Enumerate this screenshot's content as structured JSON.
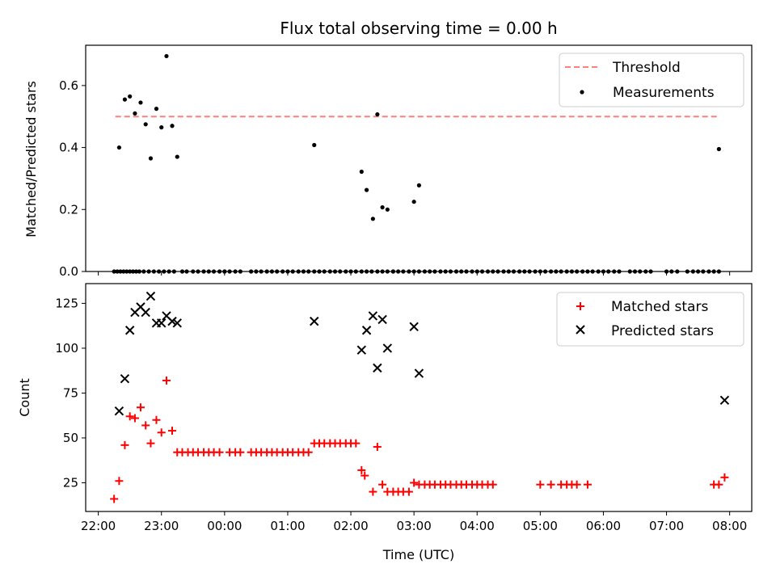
{
  "figure_title": "Flux total observing time = 0.00 h",
  "chart_data": [
    {
      "type": "scatter",
      "title": "Flux total observing time = 0.00 h",
      "xlabel": "",
      "ylabel": "Matched/Predicted stars",
      "x_unit": "hours after 22:00 UTC",
      "xlim": [
        -0.2,
        10.35
      ],
      "ylim": [
        0,
        0.73
      ],
      "yticks": [
        0.0,
        0.2,
        0.4,
        0.6
      ],
      "ytick_labels": [
        "0.0",
        "0.2",
        "0.4",
        "0.6"
      ],
      "legend_position": "upper right",
      "threshold": {
        "name": "Threshold",
        "value": 0.5,
        "x_range": [
          0.27,
          9.83
        ],
        "color": "#ff7f7f"
      },
      "series": [
        {
          "name": "Measurements",
          "color": "#000000",
          "x": [
            0.25,
            0.33,
            0.42,
            0.5,
            0.58,
            0.67,
            0.75,
            0.83,
            0.92,
            1.0,
            1.08,
            1.17,
            1.25,
            0.3,
            0.35,
            0.4,
            0.45,
            0.5,
            0.55,
            0.6,
            0.65,
            0.72,
            0.8,
            0.88,
            0.96,
            1.04,
            1.12,
            1.2,
            1.33,
            1.4,
            1.5,
            1.58,
            1.67,
            1.75,
            1.83,
            1.92,
            2.0,
            2.08,
            2.17,
            2.25,
            2.42,
            2.5,
            2.58,
            2.67,
            2.75,
            2.83,
            2.92,
            3.0,
            3.08,
            3.17,
            3.25,
            3.33,
            3.42,
            3.5,
            3.58,
            3.67,
            3.75,
            3.83,
            3.92,
            4.0,
            4.08,
            4.17,
            4.25,
            4.33,
            4.42,
            4.5,
            4.58,
            4.67,
            4.75,
            4.83,
            4.92,
            5.0,
            5.08,
            2.0,
            5.17,
            5.25,
            5.33,
            5.42,
            5.5,
            5.58,
            5.67,
            5.75,
            5.83,
            5.92,
            6.0,
            6.08,
            6.17,
            6.25,
            6.33,
            6.42,
            6.5,
            6.58,
            6.67,
            6.75,
            6.83,
            6.92,
            7.0,
            7.08,
            7.17,
            7.25,
            7.33,
            7.42,
            7.5,
            7.58,
            7.67,
            7.75,
            7.83,
            7.92,
            8.0,
            8.08,
            8.17,
            8.25,
            8.42,
            8.5,
            8.58,
            8.67,
            8.75,
            9.0,
            9.08,
            9.17,
            9.33,
            9.42,
            9.5,
            9.58,
            9.67,
            9.75,
            9.83
          ],
          "y": [
            0.0,
            0.4,
            0.555,
            0.565,
            0.51,
            0.545,
            0.475,
            0.365,
            0.525,
            0.465,
            0.695,
            0.47,
            0.37,
            0.0,
            0.0,
            0.0,
            0.0,
            0.0,
            0.0,
            0.0,
            0.0,
            0.0,
            0.0,
            0.0,
            0.0,
            0.0,
            0.0,
            0.0,
            0.0,
            0.0,
            0.0,
            0.0,
            0.0,
            0.0,
            0.0,
            0.0,
            0.0,
            0.0,
            0.0,
            0.0,
            0.0,
            0.0,
            0.0,
            0.0,
            0.0,
            0.0,
            0.0,
            0.0,
            0.0,
            0.0,
            0.0,
            0.0,
            0.0,
            0.0,
            0.0,
            0.0,
            0.0,
            0.0,
            0.0,
            0.0,
            0.0,
            0.0,
            0.0,
            0.0,
            0.0,
            0.0,
            0.0,
            0.0,
            0.0,
            0.0,
            0.0,
            0.0,
            0.0,
            0.0,
            0.0,
            0.0,
            0.0,
            0.0,
            0.0,
            0.0,
            0.0,
            0.0,
            0.0,
            0.0,
            0.0,
            0.0,
            0.0,
            0.0,
            0.0,
            0.0,
            0.0,
            0.0,
            0.0,
            0.0,
            0.0,
            0.0,
            0.0,
            0.0,
            0.0,
            0.0,
            0.0,
            0.0,
            0.0,
            0.0,
            0.0,
            0.0,
            0.0,
            0.0,
            0.0,
            0.0,
            0.0,
            0.0,
            0.0,
            0.0,
            0.0,
            0.0,
            0.0,
            0.0,
            0.0,
            0.0,
            0.0,
            0.0,
            0.0,
            0.0,
            0.0,
            0.0,
            0.0
          ]
        },
        {
          "name": "",
          "color": "#000000",
          "x": [
            3.42,
            4.17,
            4.25,
            4.35,
            4.5,
            4.58,
            4.67,
            5.0,
            5.08
          ],
          "y": [
            0.408,
            0.322,
            0.263,
            0.17,
            0.207,
            0.2,
            0.0,
            0.225,
            0.278
          ]
        },
        {
          "name": "",
          "color": "#000000",
          "x": [
            4.42,
            9.83
          ],
          "y": [
            0.507,
            0.395
          ]
        }
      ]
    },
    {
      "type": "scatter",
      "title": "",
      "xlabel": "Time (UTC)",
      "ylabel": "Count",
      "x_unit": "hours after 22:00 UTC",
      "xlim": [
        -0.2,
        10.35
      ],
      "ylim": [
        9,
        136
      ],
      "yticks": [
        25,
        50,
        75,
        100,
        125
      ],
      "ytick_labels": [
        "25",
        "50",
        "75",
        "100",
        "125"
      ],
      "xticks": [
        0,
        1,
        2,
        3,
        4,
        5,
        6,
        7,
        8,
        9,
        10
      ],
      "xtick_labels": [
        "22:00",
        "23:00",
        "00:00",
        "01:00",
        "02:00",
        "03:00",
        "04:00",
        "05:00",
        "06:00",
        "07:00",
        "08:00"
      ],
      "legend_position": "upper right",
      "series": [
        {
          "name": "Matched stars",
          "marker": "+",
          "color": "#ff0000",
          "x": [
            0.25,
            0.33,
            0.42,
            0.5,
            0.58,
            0.67,
            0.75,
            0.83,
            0.92,
            1.0,
            1.08,
            1.17,
            1.25,
            1.33,
            1.42,
            1.5,
            1.58,
            1.67,
            1.75,
            1.83,
            1.92,
            2.08,
            2.17,
            2.25,
            2.42,
            2.5,
            2.58,
            2.67,
            2.75,
            2.83,
            2.92,
            3.0,
            3.08,
            3.17,
            3.25,
            3.33,
            3.42,
            3.5,
            3.58,
            3.67,
            3.75,
            3.83,
            3.92,
            4.0,
            4.08,
            4.17,
            4.22,
            4.35,
            4.42,
            4.5,
            4.58,
            4.67,
            4.75,
            4.83,
            4.92,
            5.0,
            5.08,
            5.17,
            5.25,
            5.33,
            5.42,
            5.5,
            5.58,
            5.67,
            5.75,
            5.83,
            5.92,
            6.0,
            6.08,
            6.17,
            6.25,
            7.0,
            7.17,
            7.33,
            7.42,
            7.5,
            7.58,
            7.75,
            9.75,
            9.83,
            9.92
          ],
          "y": [
            16,
            26,
            46,
            62,
            61,
            67,
            57,
            47,
            60,
            53,
            82,
            54,
            42,
            42,
            42,
            42,
            42,
            42,
            42,
            42,
            42,
            42,
            42,
            42,
            42,
            42,
            42,
            42,
            42,
            42,
            42,
            42,
            42,
            42,
            42,
            42,
            47,
            47,
            47,
            47,
            47,
            47,
            47,
            47,
            47,
            32,
            29,
            20,
            45,
            24,
            20,
            20,
            20,
            20,
            20,
            25,
            24,
            24,
            24,
            24,
            24,
            24,
            24,
            24,
            24,
            24,
            24,
            24,
            24,
            24,
            24,
            24,
            24,
            24,
            24,
            24,
            24,
            24,
            24,
            24,
            28
          ]
        },
        {
          "name": "Predicted stars",
          "marker": "x",
          "color": "#000000",
          "x": [
            0.33,
            0.42,
            0.5,
            0.58,
            0.67,
            0.75,
            0.83,
            0.92,
            1.0,
            1.08,
            1.17,
            1.25,
            3.42,
            4.17,
            4.25,
            4.35,
            4.42,
            4.5,
            4.58,
            5.0,
            5.08,
            9.92
          ],
          "y": [
            65,
            83,
            110,
            120,
            123,
            120,
            129,
            114,
            114,
            118,
            115,
            114,
            115,
            99,
            110,
            118,
            89,
            116,
            100,
            112,
            86,
            71
          ]
        }
      ]
    }
  ]
}
